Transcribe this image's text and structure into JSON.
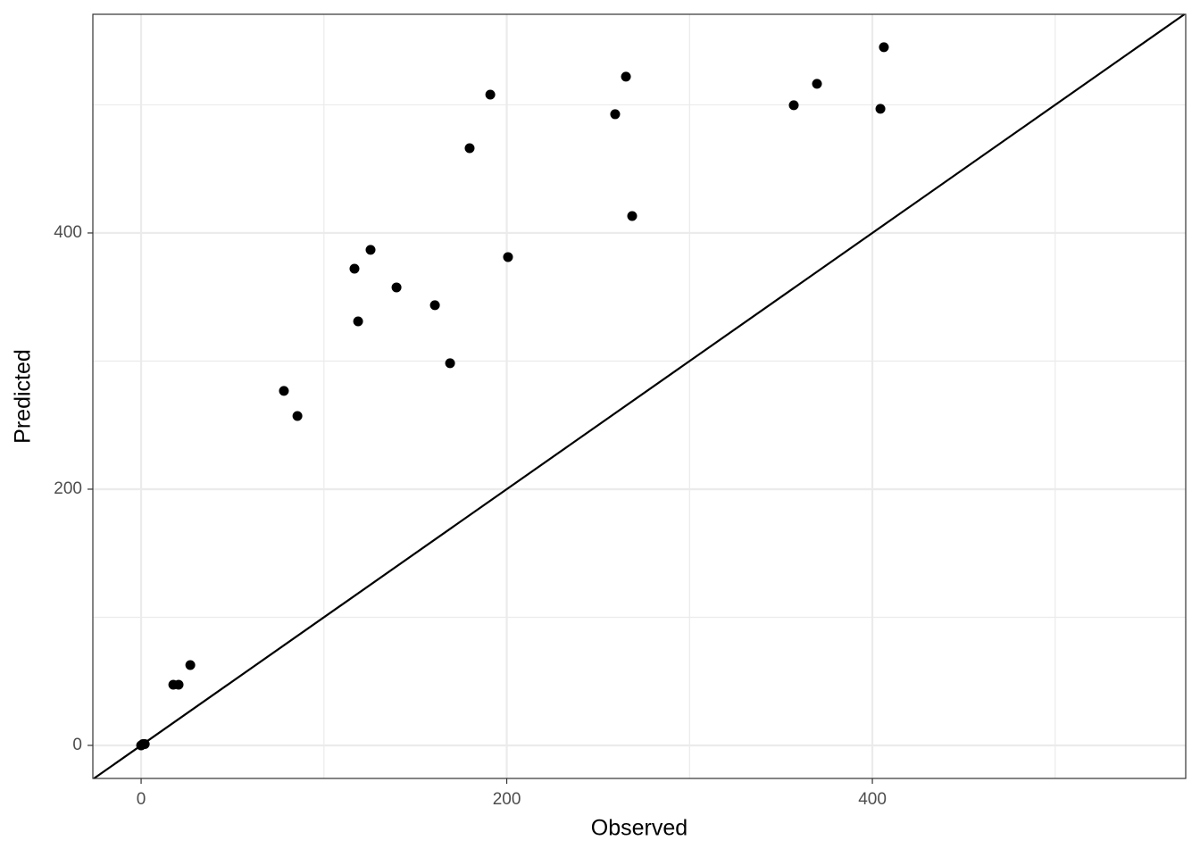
{
  "chart_data": {
    "type": "scatter",
    "x_label": "Observed",
    "y_label": "Predicted",
    "x": [
      0,
      1,
      2,
      17.6,
      20.5,
      26.9,
      78.1,
      85.5,
      116.7,
      118.7,
      125.5,
      139.7,
      160.7,
      169.0,
      179.7,
      191.0,
      200.7,
      259.3,
      265.2,
      268.6,
      357.0,
      369.7,
      404.4,
      406.3
    ],
    "values": [
      0,
      1,
      1,
      47.4,
      47.4,
      62.7,
      276.7,
      257.1,
      372.1,
      331.0,
      386.8,
      357.5,
      343.6,
      298.3,
      466.2,
      508.0,
      381.2,
      492.7,
      522.0,
      413.2,
      499.7,
      516.4,
      496.9,
      545.0
    ],
    "color": "#000000",
    "xlim": [
      -26.4,
      571.4
    ],
    "ylim": [
      -25.8,
      570.7
    ],
    "xticks": [
      0,
      200,
      400
    ],
    "yticks": [
      0,
      200,
      400
    ],
    "x_minor_ticks": [
      100,
      300,
      500
    ],
    "y_minor_ticks": [
      100,
      300,
      500
    ],
    "grid": true,
    "identity_line": true
  }
}
